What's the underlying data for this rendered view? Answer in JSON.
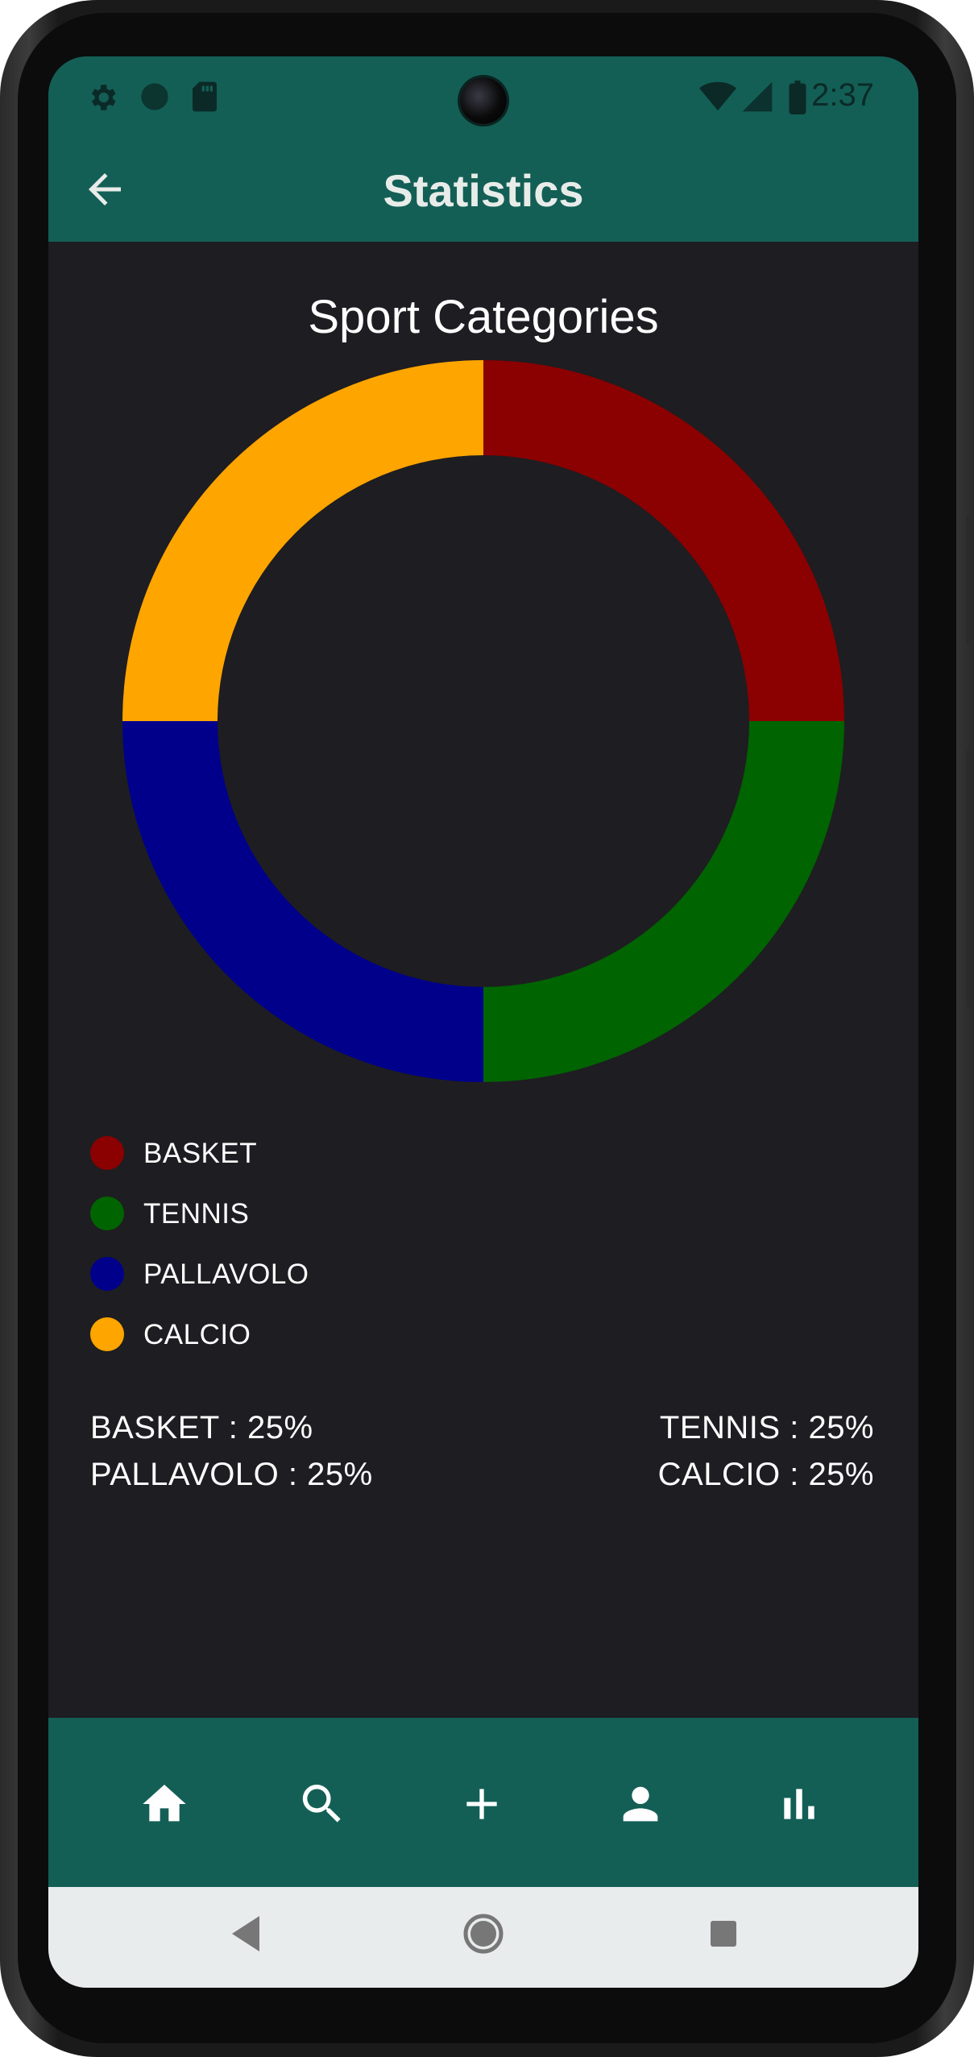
{
  "status_bar": {
    "time": "2:37",
    "left_icons": [
      "gear-icon",
      "circle-icon",
      "sd-card-icon"
    ],
    "right_icons": [
      "wifi-icon",
      "signal-icon",
      "battery-icon"
    ]
  },
  "app_bar": {
    "title": "Statistics",
    "back_icon": "arrow-back-icon"
  },
  "chart_data": {
    "type": "pie",
    "style": "donut",
    "title": "Sport Categories",
    "categories": [
      "BASKET",
      "TENNIS",
      "PALLAVOLO",
      "CALCIO"
    ],
    "values": [
      25,
      25,
      25,
      25
    ],
    "colors": [
      "#8b0000",
      "#006400",
      "#00008b",
      "#ffa500"
    ],
    "legend_position": "bottom-left"
  },
  "legend": [
    {
      "label": "BASKET",
      "color": "#8b0000"
    },
    {
      "label": "TENNIS",
      "color": "#006400"
    },
    {
      "label": "PALLAVOLO",
      "color": "#00008b"
    },
    {
      "label": "CALCIO",
      "color": "#ffa500"
    }
  ],
  "stats": {
    "basket": "BASKET : 25%",
    "tennis": "TENNIS : 25%",
    "pallavolo": "PALLAVOLO : 25%",
    "calcio": "CALCIO : 25%"
  },
  "bottom_nav": {
    "items": [
      "home-icon",
      "search-icon",
      "add-icon",
      "person-icon",
      "bar-chart-icon"
    ]
  },
  "system_nav": {
    "items": [
      "back-triangle-icon",
      "home-circle-icon",
      "recents-square-icon"
    ]
  },
  "colors": {
    "primary": "#135f56",
    "background": "#1e1d21",
    "text": "#ffffff"
  }
}
